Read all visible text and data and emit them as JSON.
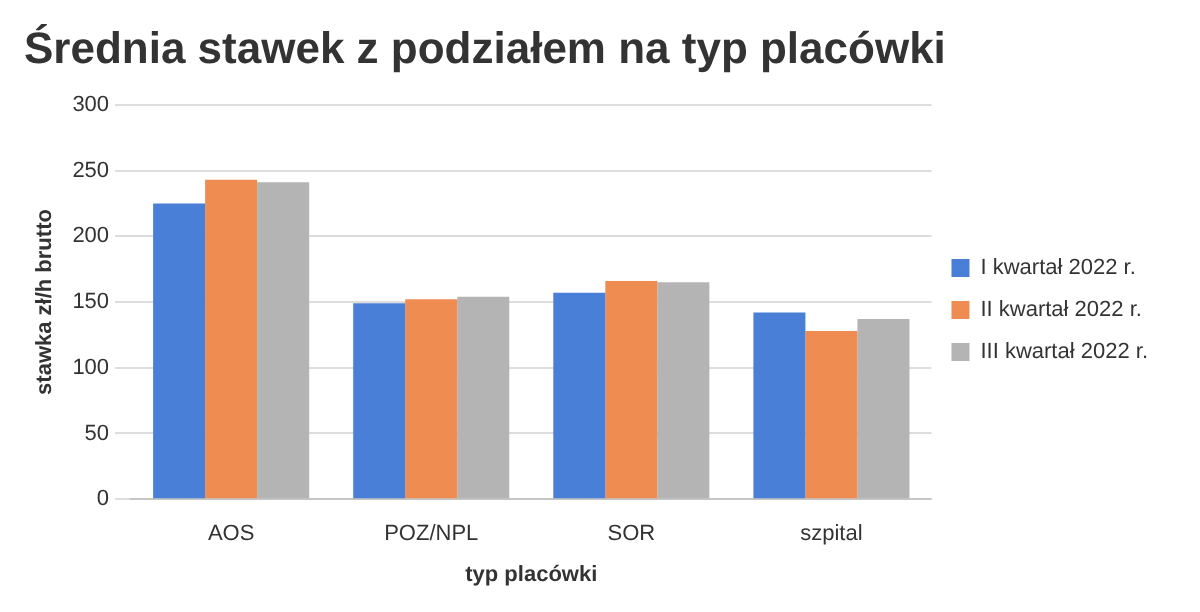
{
  "chart_data": {
    "type": "bar",
    "title": "Średnia stawek z podziałem na typ placówki",
    "xlabel": "typ placówki",
    "ylabel": "stawka zł/h brutto",
    "categories": [
      "AOS",
      "POZ/NPL",
      "SOR",
      "szpital"
    ],
    "series": [
      {
        "name": "I kwartał 2022 r.",
        "color": "#4a7fd8",
        "values": [
          225,
          149,
          157,
          142
        ]
      },
      {
        "name": "II kwartał 2022 r.",
        "color": "#ef8c52",
        "values": [
          243,
          152,
          166,
          128
        ]
      },
      {
        "name": "III kwartał 2022 r.",
        "color": "#b4b4b4",
        "values": [
          241,
          154,
          165,
          137
        ]
      }
    ],
    "ylim": [
      0,
      300
    ],
    "yticks": [
      0,
      50,
      100,
      150,
      200,
      250,
      300
    ],
    "grid": "y",
    "legend": "right"
  }
}
